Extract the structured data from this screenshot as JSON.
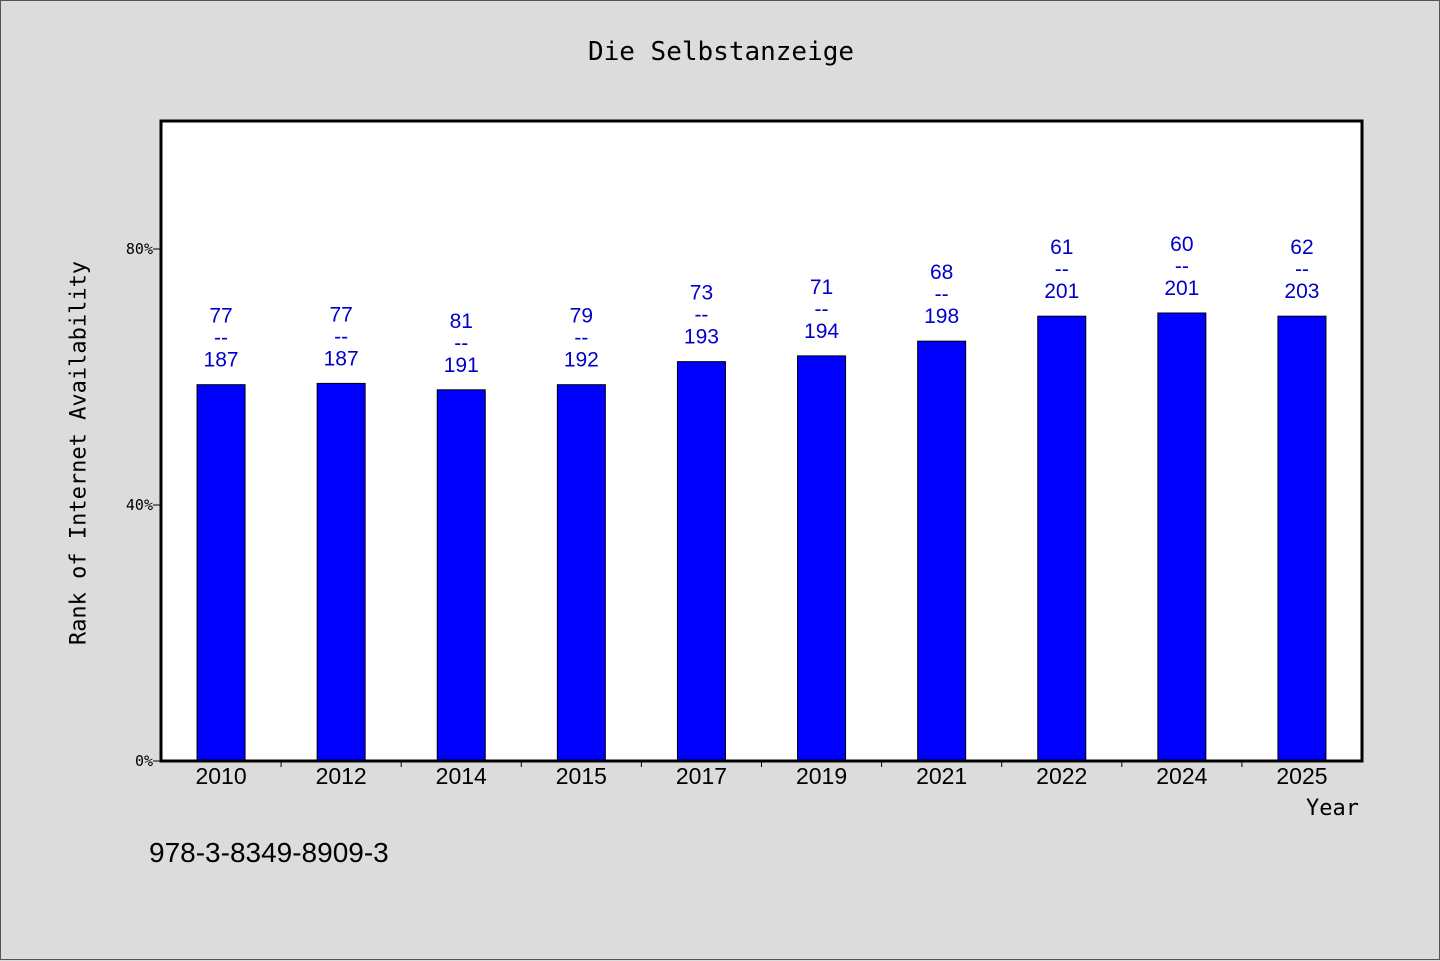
{
  "colors": {
    "background": "#dcdcdc",
    "plot": "#ffffff",
    "bar": "#0000ff",
    "label": "#0000cc"
  },
  "footer": "978-3-8349-8909-3",
  "chart_data": {
    "type": "bar",
    "title": "Die Selbstanzeige",
    "xlabel": "Year",
    "ylabel": "Rank of Internet Availability",
    "ylim": [
      0,
      100
    ],
    "yticks": [
      0,
      40,
      80
    ],
    "ytick_labels": [
      "0%",
      "40%",
      "80%"
    ],
    "grid": false,
    "categories": [
      "2010",
      "2012",
      "2014",
      "2015",
      "2017",
      "2019",
      "2021",
      "2022",
      "2024",
      "2025"
    ],
    "values": [
      58.8,
      59.0,
      58.0,
      58.8,
      62.4,
      63.3,
      65.6,
      69.5,
      70.0,
      69.5
    ],
    "data_labels": [
      [
        "77",
        "--",
        "187"
      ],
      [
        "77",
        "--",
        "187"
      ],
      [
        "81",
        "--",
        "191"
      ],
      [
        "79",
        "--",
        "192"
      ],
      [
        "73",
        "--",
        "193"
      ],
      [
        "71",
        "--",
        "194"
      ],
      [
        "68",
        "--",
        "198"
      ],
      [
        "61",
        "--",
        "201"
      ],
      [
        "60",
        "--",
        "201"
      ],
      [
        "62",
        "--",
        "203"
      ]
    ]
  }
}
